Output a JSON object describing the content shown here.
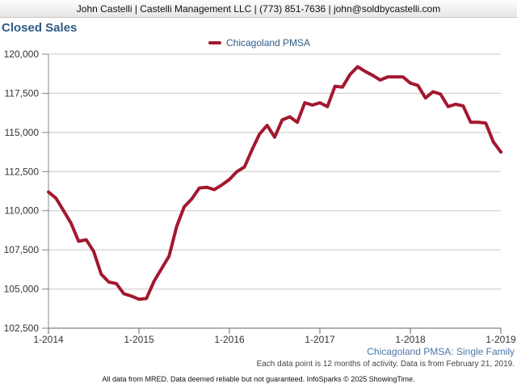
{
  "header": {
    "text": "John Castelli | Castelli Management LLC | (773) 851-7636 | john@soldbycastelli.com"
  },
  "colors": {
    "series": "#a3182f",
    "title": "#2e5b86",
    "grid": "#c8c8c8",
    "axis": "#888888"
  },
  "chart_data": {
    "type": "line",
    "title": "Closed Sales",
    "xlabel": "",
    "ylabel": "",
    "ylim": [
      102500,
      120000
    ],
    "yticks": [
      102500,
      105000,
      107500,
      110000,
      112500,
      115000,
      117500,
      120000
    ],
    "ytick_labels": [
      "102,500",
      "105,000",
      "107,500",
      "110,000",
      "112,500",
      "115,000",
      "117,500",
      "120,000"
    ],
    "xticks": [
      "1-2014",
      "1-2015",
      "1-2016",
      "1-2017",
      "1-2018",
      "1-2019"
    ],
    "legend_position": "top-center",
    "grid": true,
    "series": [
      {
        "name": "Chicagoland PMSA",
        "x": [
          "1-2014",
          "2-2014",
          "3-2014",
          "4-2014",
          "5-2014",
          "6-2014",
          "7-2014",
          "8-2014",
          "9-2014",
          "10-2014",
          "11-2014",
          "12-2014",
          "1-2015",
          "2-2015",
          "3-2015",
          "4-2015",
          "5-2015",
          "6-2015",
          "7-2015",
          "8-2015",
          "9-2015",
          "10-2015",
          "11-2015",
          "12-2015",
          "1-2016",
          "2-2016",
          "3-2016",
          "4-2016",
          "5-2016",
          "6-2016",
          "7-2016",
          "8-2016",
          "9-2016",
          "10-2016",
          "11-2016",
          "12-2016",
          "1-2017",
          "2-2017",
          "3-2017",
          "4-2017",
          "5-2017",
          "6-2017",
          "7-2017",
          "8-2017",
          "9-2017",
          "10-2017",
          "11-2017",
          "12-2017",
          "1-2018",
          "2-2018",
          "3-2018",
          "4-2018",
          "5-2018",
          "6-2018",
          "7-2018",
          "8-2018",
          "9-2018",
          "10-2018",
          "11-2018",
          "12-2018",
          "1-2019"
        ],
        "values": [
          111200,
          110800,
          110000,
          109200,
          108050,
          108150,
          107400,
          105950,
          105450,
          105350,
          104700,
          104550,
          104350,
          104400,
          105500,
          106300,
          107100,
          109000,
          110250,
          110750,
          111450,
          111500,
          111350,
          111650,
          112000,
          112500,
          112800,
          113900,
          114900,
          115450,
          114700,
          115800,
          116000,
          115650,
          116900,
          116750,
          116900,
          116650,
          117950,
          117900,
          118700,
          119200,
          118900,
          118650,
          118350,
          118550,
          118550,
          118550,
          118150,
          118000,
          117200,
          117600,
          117450,
          116650,
          116800,
          116700,
          115650,
          115650,
          115600,
          114400,
          113750
        ]
      }
    ]
  },
  "region_label": "Chicagoland PMSA: Single Family",
  "data_note": "Each data point is 12 months of activity. Data is from February 21, 2019.",
  "footer": "All data from MRED. Data deemed reliable but not guaranteed. InfoSparks © 2025 ShowingTime."
}
